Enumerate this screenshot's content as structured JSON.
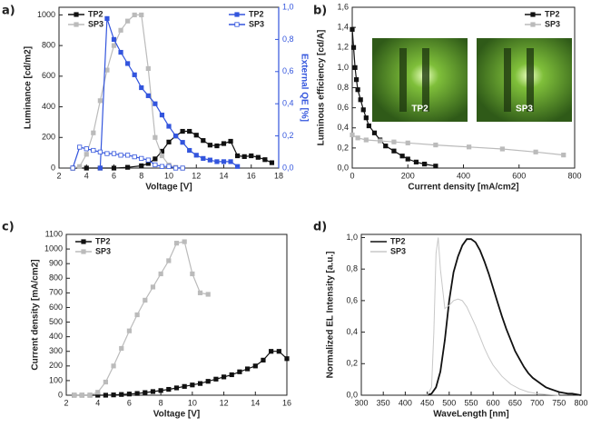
{
  "chart_data": [
    {
      "type": "line",
      "panel_label": "a)",
      "x_label": "Voltage [V]",
      "y_label": "Luminance [cd/m2]",
      "y2_label": "External QE [%]",
      "xlim": [
        2,
        18
      ],
      "xticks": [
        2,
        4,
        6,
        8,
        10,
        12,
        14,
        16,
        18
      ],
      "ylim": [
        0,
        1050
      ],
      "yticks": [
        0,
        200,
        400,
        600,
        800,
        1000
      ],
      "y2lim": [
        0,
        1.0
      ],
      "y2ticks": [
        {
          "value": 0,
          "label": "0,0"
        },
        {
          "value": 0.2,
          "label": "0,2"
        },
        {
          "value": 0.4,
          "label": "0,4"
        },
        {
          "value": 0.6,
          "label": "0,6"
        },
        {
          "value": 0.8,
          "label": "0,8"
        },
        {
          "value": 1.0,
          "label": "1,0"
        }
      ],
      "legend": "upper left",
      "series": [
        {
          "name": "TP2",
          "color": "#111111",
          "marker": "square",
          "x": [
            3,
            4,
            5,
            6,
            7,
            8,
            8.5,
            9,
            9.5,
            10,
            10.5,
            11,
            11.5,
            12,
            12.5,
            13,
            13.5,
            14,
            14.5,
            15,
            15.5,
            16,
            16.5,
            17,
            17.5
          ],
          "values": [
            0,
            0,
            0,
            0,
            5,
            15,
            30,
            60,
            110,
            170,
            210,
            240,
            240,
            215,
            180,
            150,
            145,
            160,
            175,
            80,
            75,
            80,
            70,
            55,
            35
          ]
        },
        {
          "name": "SP3",
          "color": "#bbbbbb",
          "marker": "square",
          "x": [
            3,
            3.5,
            4,
            4.5,
            5,
            5.5,
            6,
            6.5,
            7,
            7.5,
            8,
            8.5,
            9,
            9.5,
            10,
            10.5,
            11
          ],
          "values": [
            0,
            10,
            90,
            230,
            440,
            640,
            800,
            900,
            960,
            1000,
            1000,
            650,
            200,
            80,
            20,
            5,
            0
          ]
        },
        {
          "name": "TP2",
          "color": "#3355dd",
          "marker": "square",
          "axis": "y2",
          "x": [
            5,
            5.5,
            6,
            6.5,
            7,
            7.5,
            8,
            8.5,
            9,
            9.5,
            10,
            10.5,
            11,
            11.5,
            12,
            12.5,
            13,
            13.5,
            14,
            14.5,
            15
          ],
          "values": [
            0,
            0.93,
            0.8,
            0.72,
            0.65,
            0.58,
            0.5,
            0.45,
            0.4,
            0.33,
            0.26,
            0.2,
            0.16,
            0.11,
            0.08,
            0.06,
            0.05,
            0.04,
            0.04,
            0.04,
            0.01
          ]
        },
        {
          "name": "SP3",
          "color": "#3355dd",
          "marker": "open-square",
          "axis": "y2",
          "x": [
            3,
            3.5,
            4,
            4.5,
            5,
            5.5,
            6,
            6.5,
            7,
            7.5,
            8,
            8.5,
            9,
            9.5,
            10,
            10.5,
            11
          ],
          "values": [
            0,
            0.13,
            0.12,
            0.11,
            0.1,
            0.09,
            0.09,
            0.08,
            0.08,
            0.07,
            0.06,
            0.05,
            0.02,
            0.01,
            0.01,
            0,
            0
          ]
        }
      ]
    },
    {
      "type": "line",
      "panel_label": "b)",
      "x_label": "Current density [mA/cm2]",
      "y_label": "Luminous efficiency [cd/A]",
      "xlim": [
        0,
        800
      ],
      "xticks": [
        0,
        200,
        400,
        600,
        800
      ],
      "ylim": [
        0,
        1.6
      ],
      "yticks": [
        {
          "value": 0,
          "label": "0,0"
        },
        {
          "value": 0.2,
          "label": "0,2"
        },
        {
          "value": 0.4,
          "label": "0,4"
        },
        {
          "value": 0.6,
          "label": "0,6"
        },
        {
          "value": 0.8,
          "label": "0,8"
        },
        {
          "value": 1.0,
          "label": "1,0"
        },
        {
          "value": 1.2,
          "label": "1,2"
        },
        {
          "value": 1.4,
          "label": "1,4"
        },
        {
          "value": 1.6,
          "label": "1,6"
        }
      ],
      "legend": "upper right",
      "inset_labels": [
        "TP2",
        "SP3"
      ],
      "series": [
        {
          "name": "TP2",
          "color": "#111111",
          "marker": "square",
          "x": [
            0,
            5,
            10,
            15,
            20,
            30,
            40,
            50,
            60,
            80,
            100,
            120,
            150,
            180,
            200,
            230,
            260,
            300
          ],
          "values": [
            1.38,
            1.2,
            1.0,
            0.88,
            0.78,
            0.68,
            0.58,
            0.5,
            0.42,
            0.35,
            0.28,
            0.22,
            0.17,
            0.12,
            0.09,
            0.06,
            0.04,
            0.02
          ]
        },
        {
          "name": "SP3",
          "color": "#bbbbbb",
          "marker": "square",
          "x": [
            0,
            20,
            50,
            100,
            150,
            200,
            300,
            420,
            540,
            660,
            760
          ],
          "values": [
            0.33,
            0.3,
            0.28,
            0.27,
            0.26,
            0.25,
            0.23,
            0.21,
            0.19,
            0.16,
            0.13
          ]
        }
      ]
    },
    {
      "type": "line",
      "panel_label": "c)",
      "x_label": "Voltage [V]",
      "y_label": "Current density [mA/cm2]",
      "xlim": [
        2,
        16
      ],
      "xticks": [
        2,
        4,
        6,
        8,
        10,
        12,
        14,
        16
      ],
      "ylim": [
        0,
        1100
      ],
      "yticks": [
        0,
        100,
        200,
        300,
        400,
        500,
        600,
        700,
        800,
        900,
        1000,
        1100
      ],
      "legend": "upper left",
      "series": [
        {
          "name": "TP2",
          "color": "#111111",
          "marker": "square",
          "x": [
            2.5,
            3,
            3.5,
            4,
            4.5,
            5,
            5.5,
            6,
            6.5,
            7,
            7.5,
            8,
            8.5,
            9,
            9.5,
            10,
            10.5,
            11,
            11.5,
            12,
            12.5,
            13,
            13.5,
            14,
            14.5,
            15,
            15.5,
            16
          ],
          "values": [
            0,
            0,
            0,
            0,
            0,
            2,
            5,
            8,
            12,
            18,
            25,
            32,
            40,
            50,
            60,
            70,
            80,
            95,
            110,
            125,
            140,
            160,
            180,
            200,
            240,
            300,
            300,
            250
          ]
        },
        {
          "name": "SP3",
          "color": "#bbbbbb",
          "marker": "square",
          "x": [
            2.5,
            3,
            3.5,
            4,
            4.5,
            5,
            5.5,
            6,
            6.5,
            7,
            7.5,
            8,
            8.5,
            9,
            9.5,
            10,
            10.5,
            11
          ],
          "values": [
            0,
            0,
            0,
            20,
            90,
            200,
            320,
            440,
            550,
            650,
            740,
            830,
            920,
            1040,
            1050,
            830,
            700,
            690
          ]
        }
      ]
    },
    {
      "type": "line",
      "panel_label": "d)",
      "x_label": "WaveLength [nm]",
      "y_label": "Normalized EL Intensity [a.u.]",
      "xlim": [
        300,
        800
      ],
      "xticks": [
        300,
        350,
        400,
        450,
        500,
        550,
        600,
        650,
        700,
        750,
        800
      ],
      "ylim": [
        0,
        1.02
      ],
      "yticks": [
        {
          "value": 0,
          "label": "0,0"
        },
        {
          "value": 0.2,
          "label": "0,2"
        },
        {
          "value": 0.4,
          "label": "0,4"
        },
        {
          "value": 0.6,
          "label": "0,6"
        },
        {
          "value": 0.8,
          "label": "0,8"
        },
        {
          "value": 1.0,
          "label": "1,0"
        }
      ],
      "legend": "upper left",
      "series": [
        {
          "name": "TP2",
          "color": "#111111",
          "marker": "none",
          "x": [
            440,
            450,
            460,
            470,
            480,
            490,
            500,
            510,
            520,
            530,
            540,
            550,
            560,
            570,
            580,
            590,
            600,
            610,
            620,
            630,
            640,
            650,
            660,
            670,
            680,
            690,
            700,
            710,
            720,
            730,
            740,
            750,
            760,
            770,
            780,
            790,
            800
          ],
          "values": [
            0,
            0,
            0.01,
            0.05,
            0.15,
            0.35,
            0.6,
            0.78,
            0.88,
            0.95,
            0.99,
            0.99,
            0.97,
            0.92,
            0.85,
            0.77,
            0.68,
            0.59,
            0.5,
            0.42,
            0.35,
            0.28,
            0.23,
            0.18,
            0.14,
            0.11,
            0.09,
            0.07,
            0.05,
            0.04,
            0.03,
            0.02,
            0.015,
            0.01,
            0.01,
            0.005,
            0
          ]
        },
        {
          "name": "SP3",
          "color": "#c8c8c8",
          "marker": "none",
          "x": [
            440,
            450,
            460,
            465,
            470,
            475,
            480,
            490,
            500,
            510,
            520,
            530,
            540,
            550,
            560,
            570,
            580,
            590,
            600,
            620,
            640,
            660,
            680,
            700,
            720,
            750
          ],
          "values": [
            0,
            0,
            0.05,
            0.4,
            0.9,
            1.0,
            0.8,
            0.55,
            0.57,
            0.6,
            0.61,
            0.6,
            0.56,
            0.5,
            0.44,
            0.37,
            0.3,
            0.24,
            0.19,
            0.12,
            0.07,
            0.04,
            0.02,
            0.01,
            0.005,
            0
          ]
        }
      ]
    }
  ]
}
